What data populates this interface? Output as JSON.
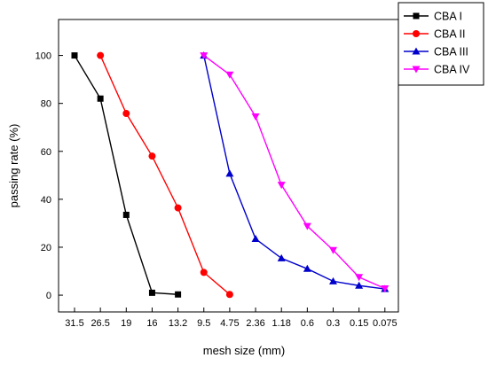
{
  "chart_data": {
    "type": "line",
    "xlabel": "mesh size (mm)",
    "ylabel": "passing rate (%)",
    "categories": [
      "31.5",
      "26.5",
      "19",
      "16",
      "13.2",
      "9.5",
      "4.75",
      "2.36",
      "1.18",
      "0.6",
      "0.3",
      "0.15",
      "0.075"
    ],
    "ylim": [
      -7,
      115
    ],
    "yticks": [
      0,
      20,
      40,
      60,
      80,
      100
    ],
    "legend_position": "top-right, outside plot",
    "grid": false,
    "series": [
      {
        "name": "CBA I",
        "color": "#000000",
        "marker": "square",
        "points": [
          {
            "x": "31.5",
            "y": 100
          },
          {
            "x": "26.5",
            "y": 82
          },
          {
            "x": "19",
            "y": 33.5
          },
          {
            "x": "16",
            "y": 1
          },
          {
            "x": "13.2",
            "y": 0.3
          }
        ]
      },
      {
        "name": "CBA II",
        "color": "#ff0000",
        "marker": "circle",
        "points": [
          {
            "x": "26.5",
            "y": 100
          },
          {
            "x": "19",
            "y": 75.8
          },
          {
            "x": "16",
            "y": 58
          },
          {
            "x": "13.2",
            "y": 36.4
          },
          {
            "x": "9.5",
            "y": 9.5
          },
          {
            "x": "4.75",
            "y": 0.3
          }
        ]
      },
      {
        "name": "CBA III",
        "color": "#0000cc",
        "marker": "triangle-up",
        "points": [
          {
            "x": "9.5",
            "y": 100
          },
          {
            "x": "4.75",
            "y": 50.7
          },
          {
            "x": "2.36",
            "y": 23.5
          },
          {
            "x": "1.18",
            "y": 15.4
          },
          {
            "x": "0.6",
            "y": 11
          },
          {
            "x": "0.3",
            "y": 5.8
          },
          {
            "x": "0.15",
            "y": 4
          },
          {
            "x": "0.075",
            "y": 2.6
          }
        ]
      },
      {
        "name": "CBA IV",
        "color": "#ff00ff",
        "marker": "triangle-down",
        "points": [
          {
            "x": "9.5",
            "y": 100
          },
          {
            "x": "4.75",
            "y": 92
          },
          {
            "x": "2.36",
            "y": 74.5
          },
          {
            "x": "1.18",
            "y": 46
          },
          {
            "x": "0.6",
            "y": 28.8
          },
          {
            "x": "0.3",
            "y": 18.8
          },
          {
            "x": "0.15",
            "y": 7.5
          },
          {
            "x": "0.075",
            "y": 2.8
          }
        ]
      }
    ]
  }
}
